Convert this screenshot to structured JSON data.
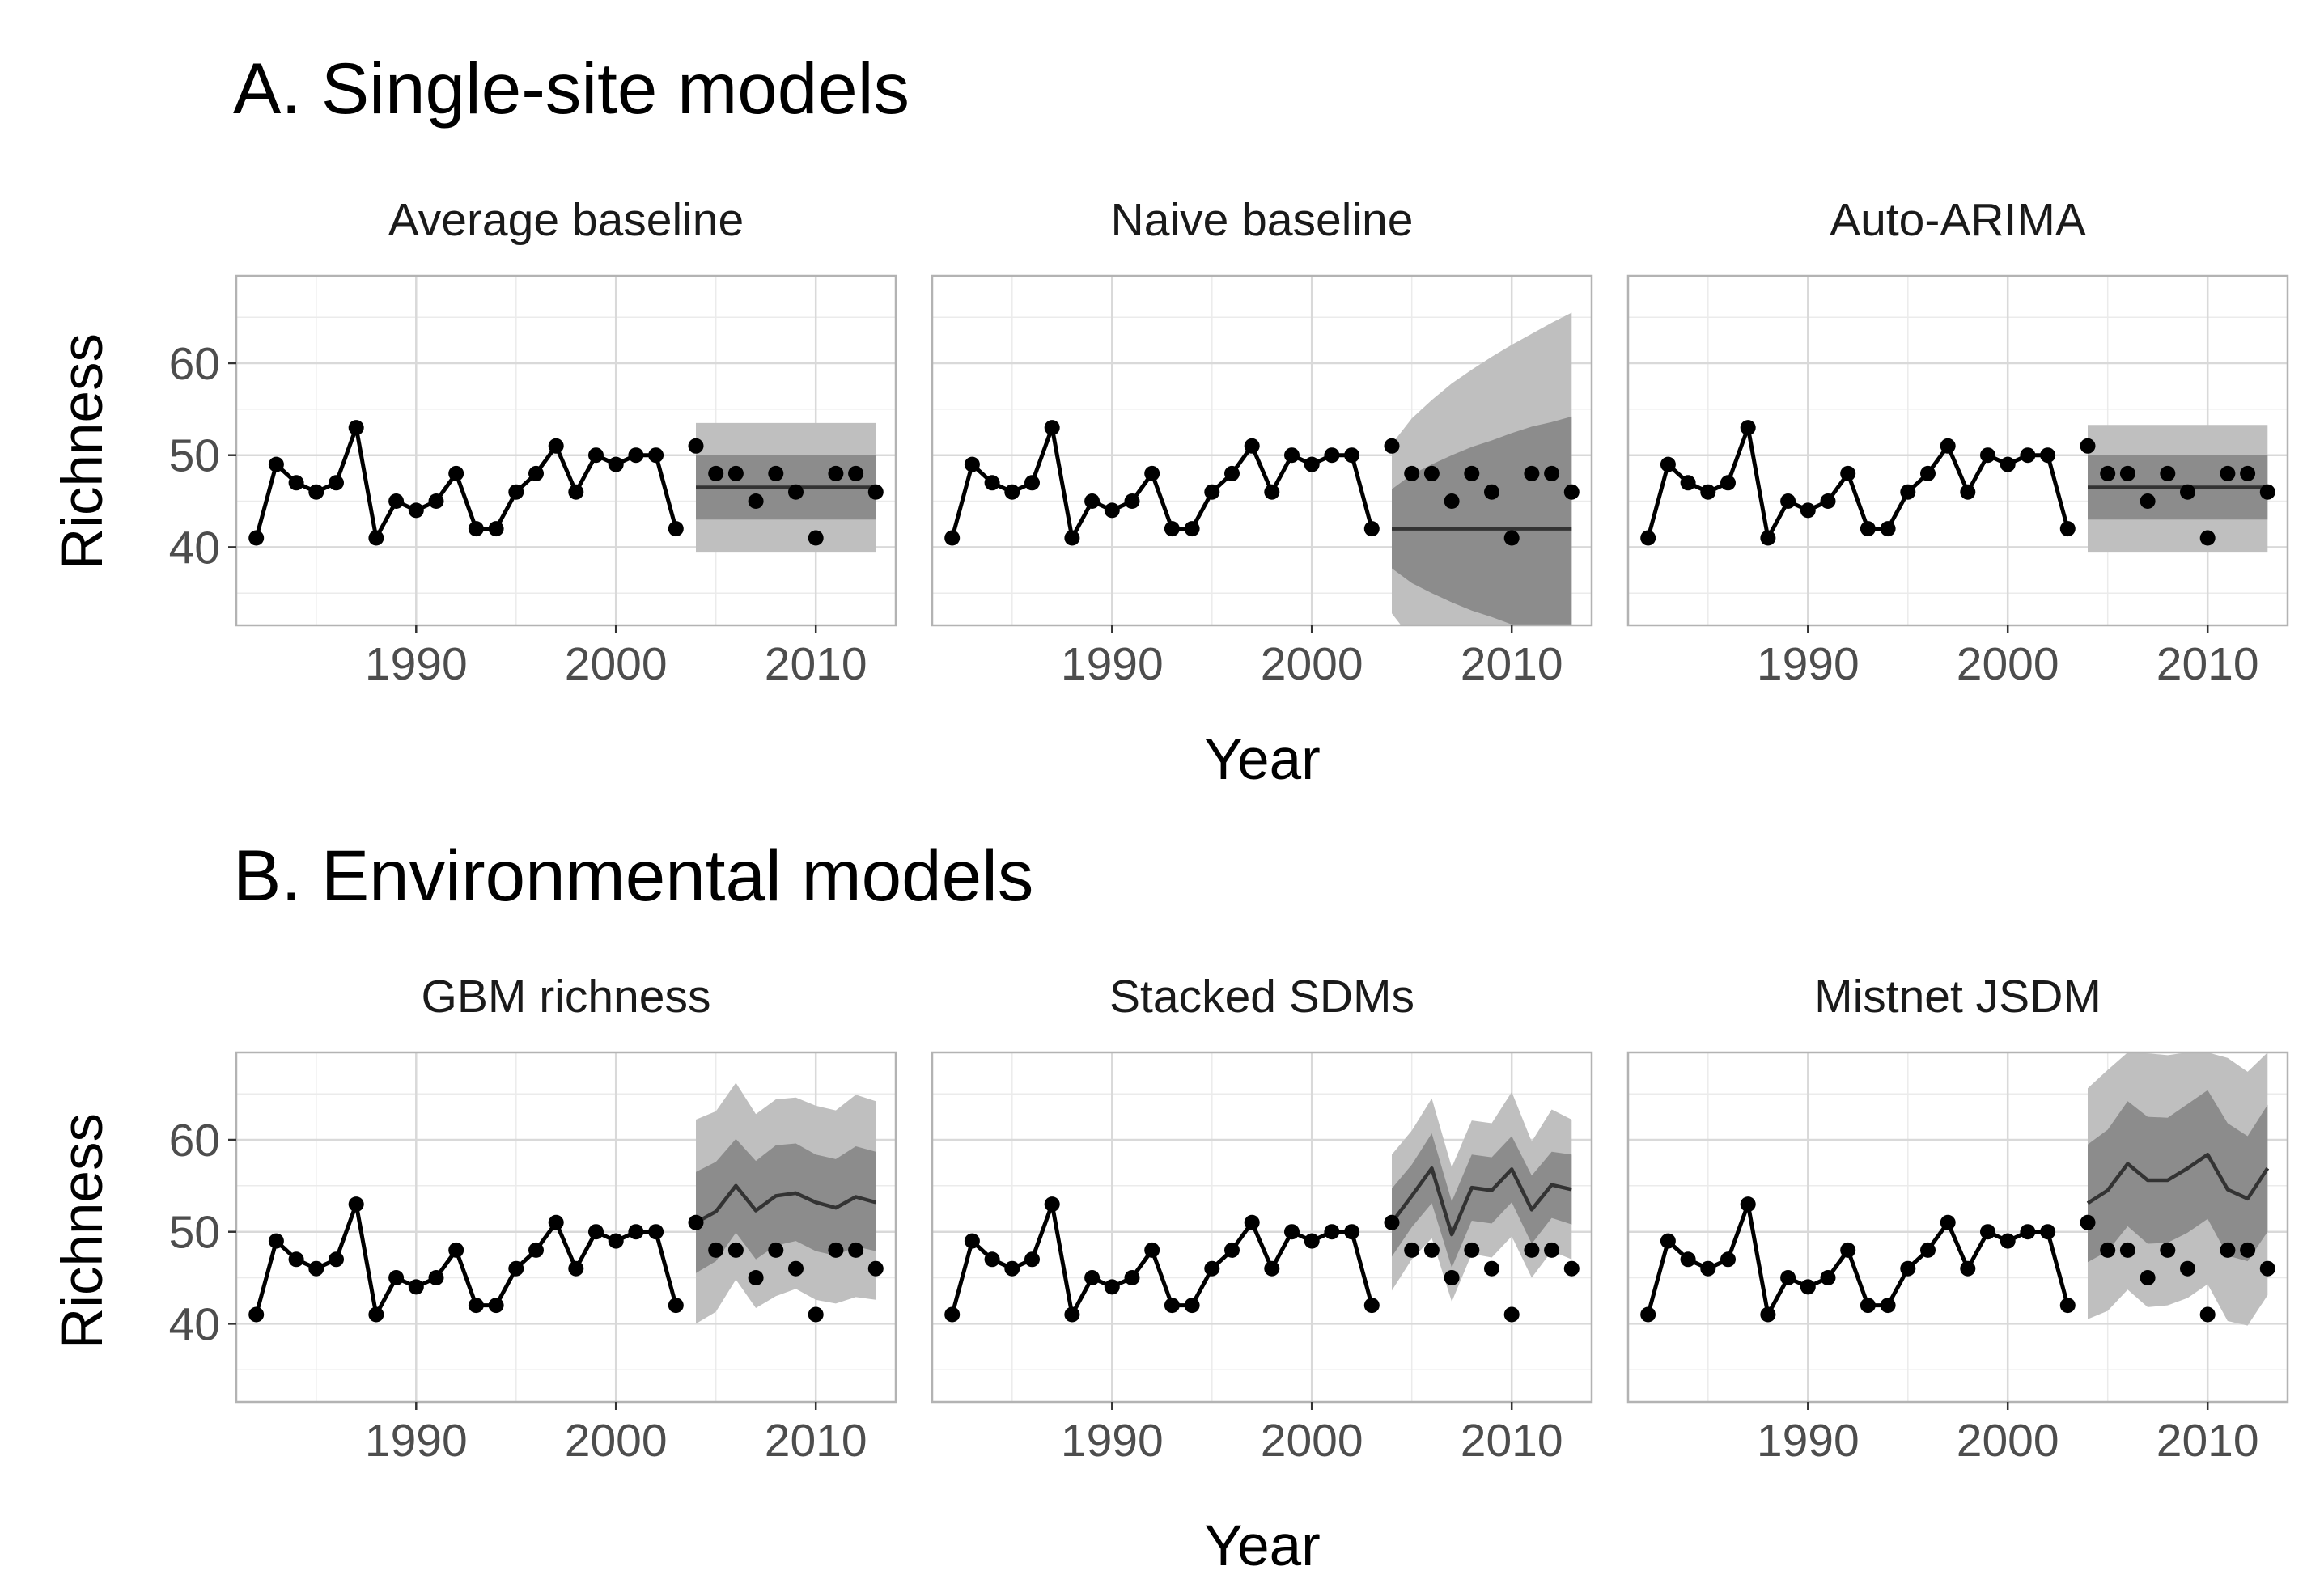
{
  "colors": {
    "panel_border": "#b3b3b3",
    "grid_major": "#d9d9d9",
    "grid_minor": "#ebebeb",
    "observed": "#000000",
    "forecast_line": "#333333",
    "interval_95": "#bfbfbf",
    "interval_50": "#8c8c8c"
  },
  "sections": [
    {
      "title": "A. Single-site models",
      "y_axis_title": "Richness",
      "x_axis_title": "Year"
    },
    {
      "title": "B. Environmental models",
      "y_axis_title": "Richness",
      "x_axis_title": "Year"
    }
  ],
  "chart_data": {
    "type": "line",
    "facets": "2 rows x 3 columns",
    "x_range": [
      1981,
      2014
    ],
    "y_range": [
      31.5,
      69.5
    ],
    "x_ticks": [
      1990,
      2000,
      2010
    ],
    "y_ticks": [
      40,
      50,
      60
    ],
    "grid": true,
    "observed": {
      "years": [
        1982,
        1983,
        1984,
        1985,
        1986,
        1987,
        1988,
        1989,
        1990,
        1991,
        1992,
        1993,
        1994,
        1995,
        1996,
        1997,
        1998,
        1999,
        2000,
        2001,
        2002,
        2003,
        2004,
        2005,
        2006,
        2007,
        2008,
        2009,
        2010,
        2011,
        2012,
        2013
      ],
      "richness": [
        41,
        49,
        47,
        46,
        47,
        53,
        41,
        45,
        44,
        45,
        48,
        42,
        42,
        46,
        48,
        51,
        46,
        50,
        49,
        50,
        50,
        42,
        51,
        48,
        48,
        45,
        48,
        46,
        41,
        48,
        48,
        46
      ]
    },
    "forecast_years": [
      2004,
      2005,
      2006,
      2007,
      2008,
      2009,
      2010,
      2011,
      2012,
      2013
    ],
    "panels": [
      {
        "section": 0,
        "title": "Average baseline",
        "mean": [
          46.5,
          46.5,
          46.5,
          46.5,
          46.5,
          46.5,
          46.5,
          46.5,
          46.5,
          46.5
        ],
        "lo95": [
          39.5,
          39.5,
          39.5,
          39.5,
          39.5,
          39.5,
          39.5,
          39.5,
          39.5,
          39.5
        ],
        "hi95": [
          53.5,
          53.5,
          53.5,
          53.5,
          53.5,
          53.5,
          53.5,
          53.5,
          53.5,
          53.5
        ],
        "lo50": [
          43,
          43,
          43,
          43,
          43,
          43,
          43,
          43,
          43,
          43
        ],
        "hi50": [
          50,
          50,
          50,
          50,
          50,
          50,
          50,
          50,
          50,
          50
        ]
      },
      {
        "section": 0,
        "title": "Naive baseline",
        "mean": [
          42,
          42,
          42,
          42,
          42,
          42,
          42,
          42,
          42,
          42
        ],
        "lo95": [
          32.8,
          30,
          28,
          26.2,
          24.7,
          23.3,
          22,
          20.8,
          19.6,
          18.5
        ],
        "hi95": [
          51.2,
          54,
          56,
          57.8,
          59.3,
          60.7,
          62,
          63.2,
          64.4,
          65.5
        ],
        "lo50": [
          37.7,
          36.1,
          35,
          34,
          33.1,
          32.4,
          31.6,
          30.9,
          30.4,
          29.8
        ],
        "hi50": [
          46.3,
          47.9,
          49,
          50,
          50.9,
          51.6,
          52.4,
          53.1,
          53.6,
          54.2
        ]
      },
      {
        "section": 0,
        "title": "Auto-ARIMA",
        "mean": [
          46.5,
          46.5,
          46.5,
          46.5,
          46.5,
          46.5,
          46.5,
          46.5,
          46.5,
          46.5
        ],
        "lo95": [
          39.5,
          39.5,
          39.5,
          39.5,
          39.5,
          39.5,
          39.5,
          39.5,
          39.5,
          39.5
        ],
        "hi95": [
          53.3,
          53.3,
          53.3,
          53.3,
          53.3,
          53.3,
          53.3,
          53.3,
          53.3,
          53.3
        ],
        "lo50": [
          43,
          43,
          43,
          43,
          43,
          43,
          43,
          43,
          43,
          43
        ],
        "hi50": [
          50,
          50,
          50,
          50,
          50,
          50,
          50,
          50,
          50,
          50
        ]
      },
      {
        "section": 1,
        "title": "GBM richness",
        "mean": [
          51,
          52.2,
          55,
          52.3,
          53.9,
          54.2,
          53.2,
          52.6,
          53.8,
          53.2
        ],
        "lo95": [
          40,
          41.3,
          44.8,
          41.7,
          43,
          43.8,
          42.6,
          42.2,
          42.9,
          42.6
        ],
        "hi95": [
          62.2,
          63.1,
          66.2,
          62.8,
          64.4,
          64.6,
          63.7,
          63.2,
          64.9,
          64.2
        ],
        "lo50": [
          45.5,
          46.8,
          49.9,
          47,
          48.5,
          49,
          47.9,
          47.4,
          48.4,
          47.9
        ],
        "hi50": [
          56.5,
          57.6,
          60.1,
          57.7,
          59.4,
          59.6,
          58.4,
          57.9,
          59.3,
          58.7
        ]
      },
      {
        "section": 1,
        "title": "Stacked SDMs",
        "mean": [
          51,
          53.9,
          56.9,
          49.7,
          54.8,
          54.5,
          56.8,
          52.4,
          55.1,
          54.6
        ],
        "lo95": [
          43.6,
          47,
          49.3,
          42.4,
          47.6,
          47.2,
          49.5,
          45,
          47.9,
          47
        ],
        "hi95": [
          58.4,
          61,
          64.5,
          57,
          62.1,
          61.8,
          65.2,
          59.8,
          63.3,
          62.2
        ],
        "lo50": [
          47.3,
          50.5,
          53.1,
          46.1,
          51.2,
          50.9,
          53.2,
          48.7,
          51.5,
          50.8
        ],
        "hi50": [
          54.7,
          57.3,
          60.7,
          53.3,
          58.4,
          58.1,
          60.4,
          56.1,
          58.7,
          58.4
        ]
      },
      {
        "section": 1,
        "title": "Mistnet JSDM",
        "mean": [
          53.1,
          54.5,
          57.4,
          55.6,
          55.6,
          56.9,
          58.4,
          54.6,
          53.6,
          56.9
        ],
        "lo95": [
          40.5,
          41.4,
          43.7,
          41.8,
          42,
          42.8,
          44.3,
          40.3,
          39.8,
          43.1
        ],
        "hi95": [
          65.6,
          67.6,
          69.5,
          69.4,
          69.2,
          69.5,
          69.5,
          68.9,
          67.4,
          69.5
        ],
        "lo50": [
          46.7,
          47.9,
          50.6,
          48.7,
          48.8,
          49.9,
          51.4,
          47.4,
          46.8,
          50
        ],
        "hi50": [
          59.5,
          61.1,
          64.2,
          62.5,
          62.4,
          63.9,
          65.4,
          61.8,
          60.4,
          63.8
        ]
      }
    ]
  }
}
